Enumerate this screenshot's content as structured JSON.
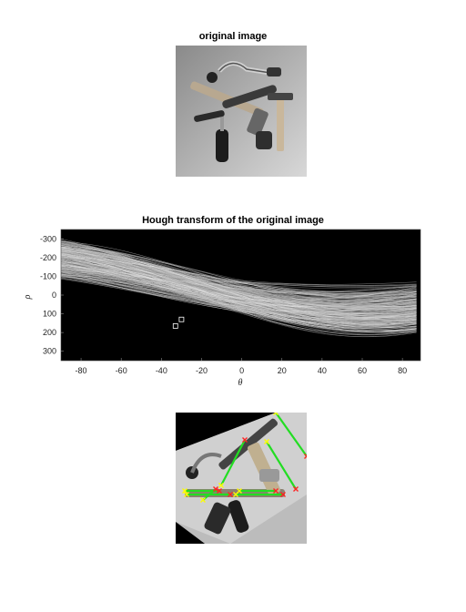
{
  "figures": [
    {
      "title": "original image",
      "image": "grayscale photo of hand tools (brace drill, hammers, screwdriver, wrench)"
    },
    {
      "title": "Hough transform of the original image"
    },
    {
      "title": "",
      "image": "rotated tools image with detected line segments"
    }
  ],
  "colors": {
    "segment": "#22dd22",
    "endpoint_start": "#ffff00",
    "endpoint_end": "#ff2222",
    "peak_marker": "#ffffff"
  },
  "chart_data": {
    "type": "heatmap",
    "title": "Hough transform of the original image",
    "xlabel": "θ",
    "ylabel": "ρ",
    "xlim": [
      -90,
      89
    ],
    "ylim": [
      -350,
      350
    ],
    "y_reversed": true,
    "xticks": [
      -80,
      -60,
      -40,
      -20,
      0,
      20,
      40,
      60,
      80
    ],
    "yticks": [
      -300,
      -200,
      -100,
      0,
      100,
      200,
      300
    ],
    "colormap": "gray",
    "peaks": [
      {
        "theta": -30,
        "rho": 130
      },
      {
        "theta": -33,
        "rho": 165
      }
    ]
  }
}
